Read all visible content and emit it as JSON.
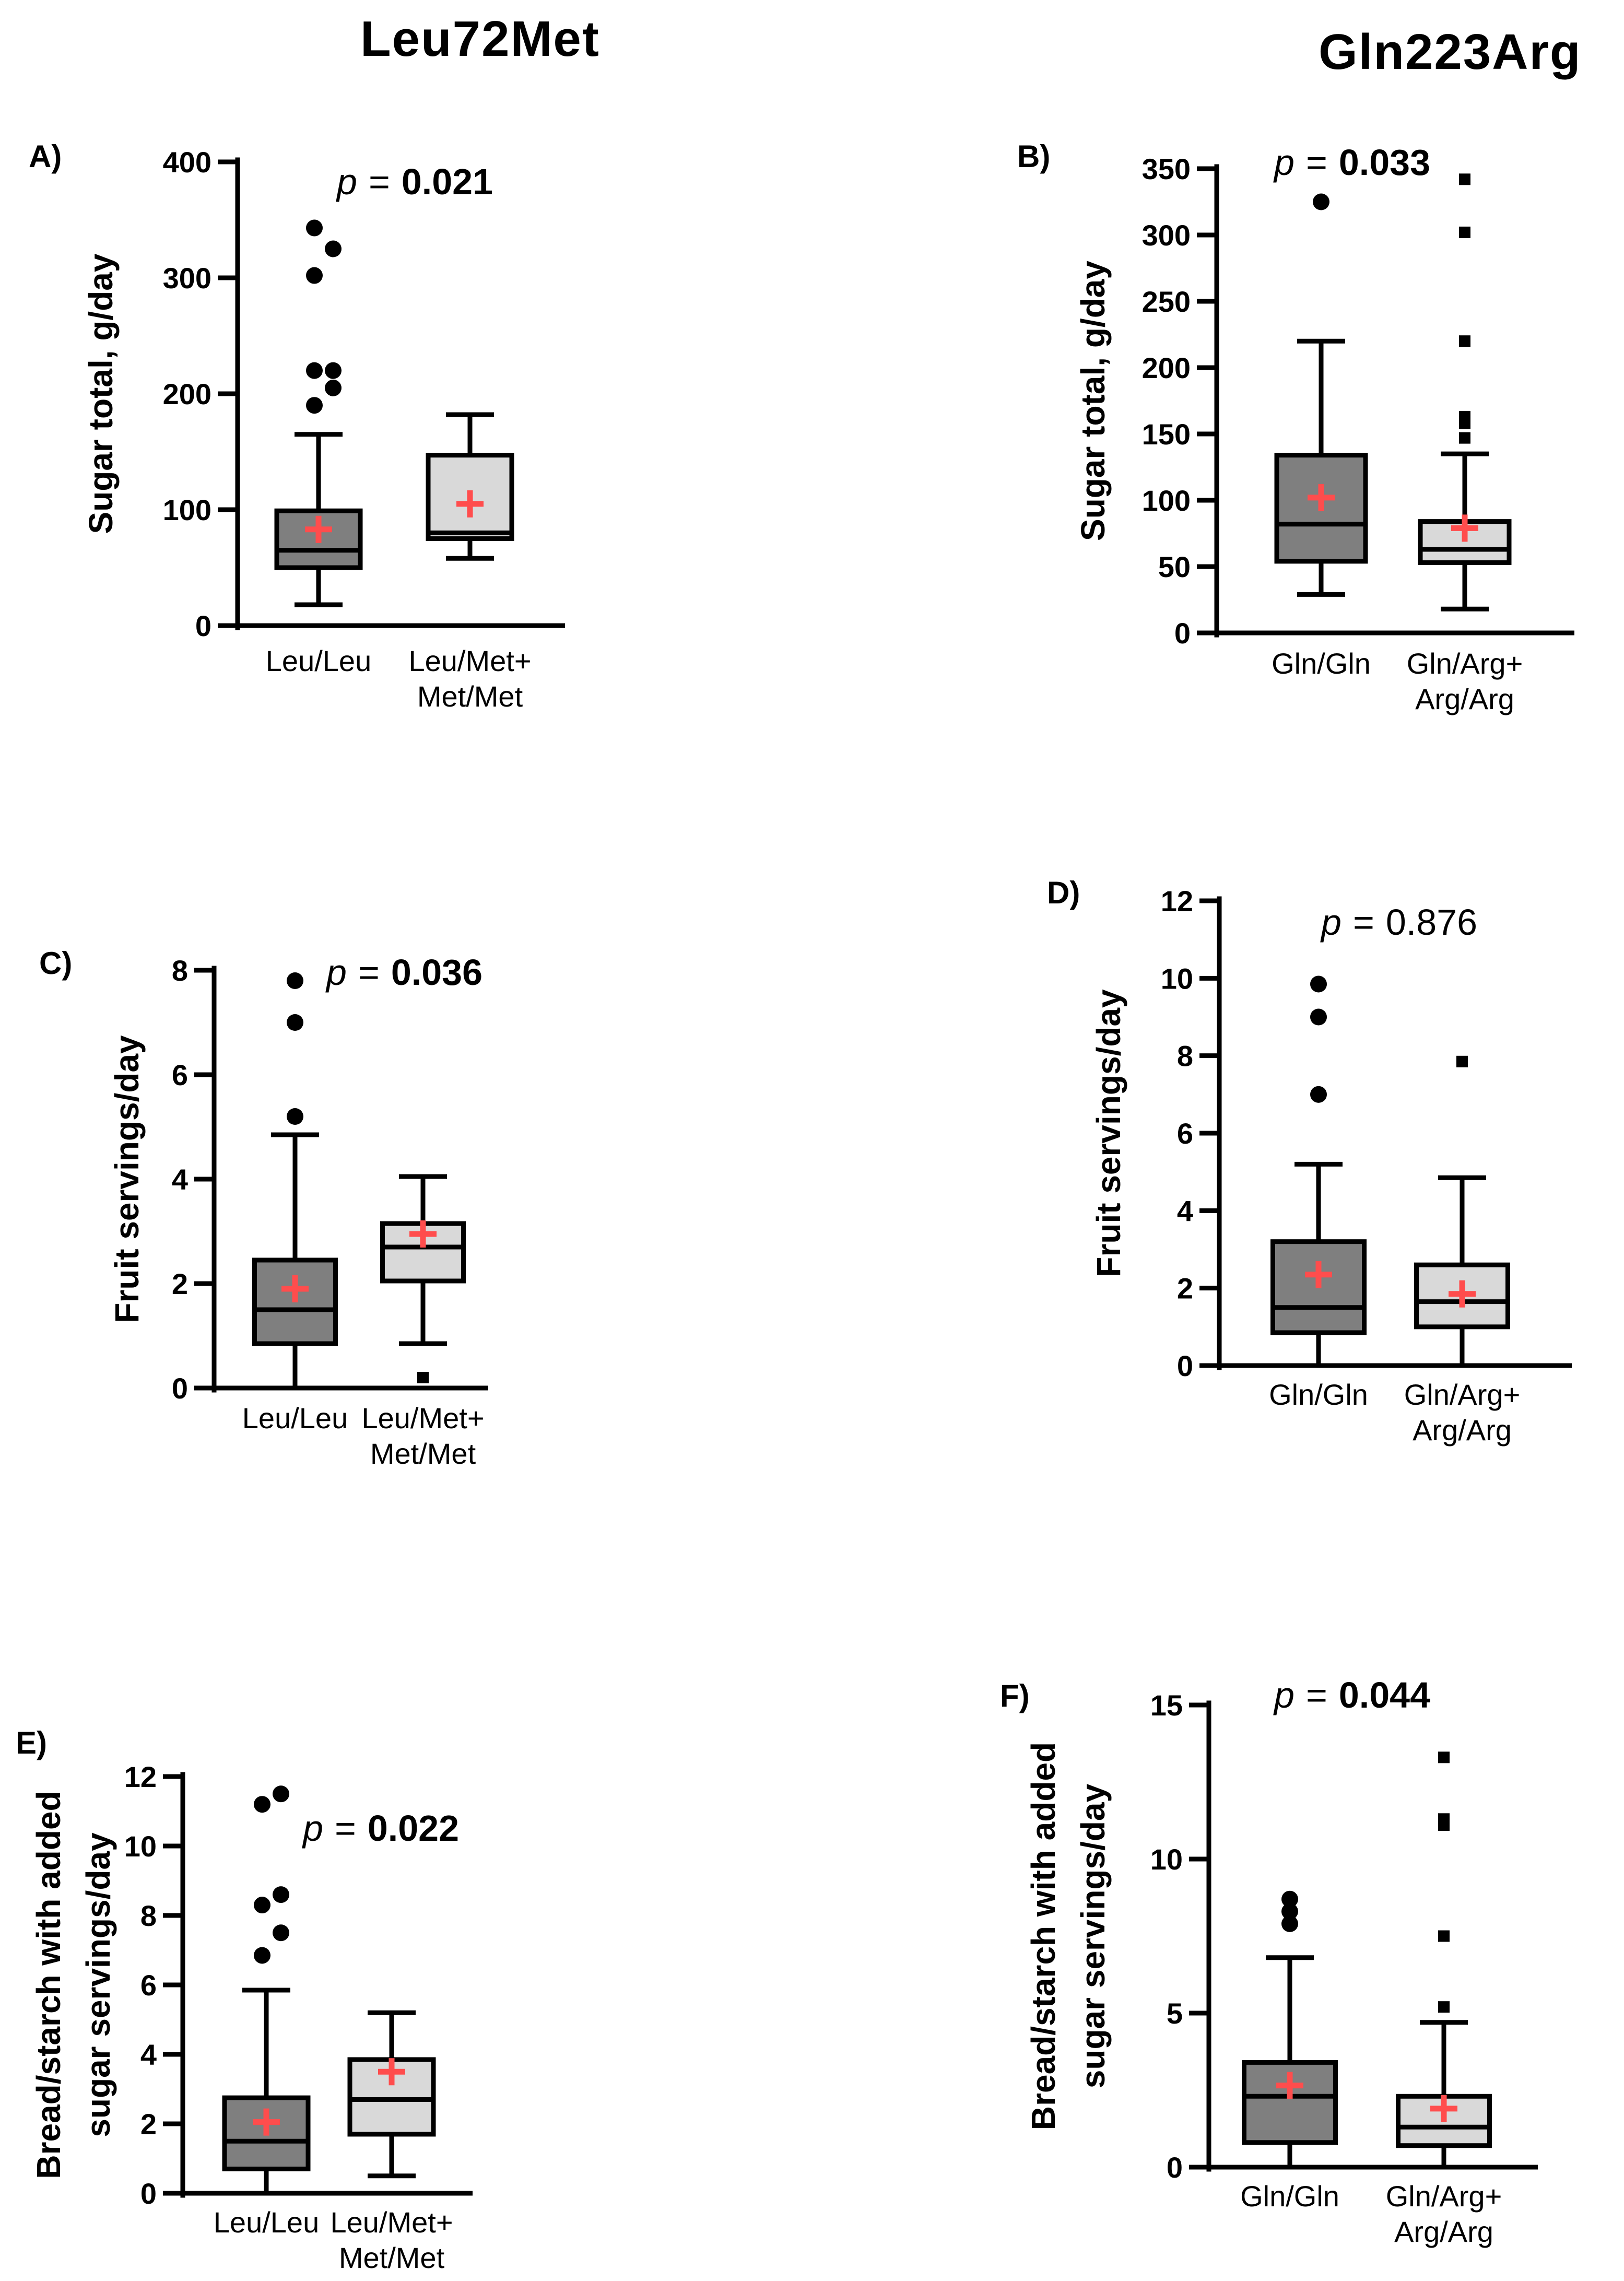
{
  "titles": {
    "left": "Leu72Met",
    "right": "Gln223Arg"
  },
  "chart_data": [
    {
      "id": "A",
      "label": "A)",
      "type": "boxplot",
      "ylabel": "Sugar total, g/day",
      "ylim": [
        0,
        400
      ],
      "yticks": [
        0,
        100,
        200,
        300,
        400
      ],
      "p_prefix": "p",
      "p_eq": "=",
      "p_value": "0.021",
      "p_bold": true,
      "categories": [
        {
          "label": [
            "Leu/Leu"
          ],
          "fill": "#7f7f7f",
          "whisker_low": 18,
          "q1": 50,
          "median": 65,
          "q3": 99,
          "whisker_high": 165,
          "mean": 83,
          "outlier_shape": "circle",
          "outliers": [
            190,
            205,
            220,
            220,
            302,
            325,
            343
          ]
        },
        {
          "label": [
            "Leu/Met+",
            "Met/Met"
          ],
          "fill": "#d9d9d9",
          "whisker_low": 58,
          "q1": 75,
          "median": 80,
          "q3": 147,
          "whisker_high": 182,
          "mean": 105,
          "outlier_shape": "square",
          "outliers": []
        }
      ]
    },
    {
      "id": "B",
      "label": "B)",
      "type": "boxplot",
      "ylabel": "Sugar total, g/day",
      "ylim": [
        0,
        350
      ],
      "yticks": [
        0,
        50,
        100,
        150,
        200,
        250,
        300,
        350
      ],
      "p_prefix": "p",
      "p_eq": "=",
      "p_value": "0.033",
      "p_bold": true,
      "categories": [
        {
          "label": [
            "Gln/Gln"
          ],
          "fill": "#7f7f7f",
          "whisker_low": 29,
          "q1": 54,
          "median": 82,
          "q3": 134,
          "whisker_high": 220,
          "mean": 102,
          "outlier_shape": "circle",
          "outliers": [
            325
          ]
        },
        {
          "label": [
            "Gln/Arg+",
            "Arg/Arg"
          ],
          "fill": "#d9d9d9",
          "whisker_low": 18,
          "q1": 53,
          "median": 63,
          "q3": 84,
          "whisker_high": 135,
          "mean": 79,
          "outlier_shape": "square",
          "outliers": [
            147,
            158,
            163,
            220,
            302,
            342
          ]
        }
      ]
    },
    {
      "id": "C",
      "label": "C)",
      "type": "boxplot",
      "ylabel": "Fruit servings/day",
      "ylim": [
        0,
        8
      ],
      "yticks": [
        0,
        2,
        4,
        6,
        8
      ],
      "p_prefix": "p",
      "p_eq": "=",
      "p_value": "0.036",
      "p_bold": true,
      "categories": [
        {
          "label": [
            "Leu/Leu"
          ],
          "fill": "#7f7f7f",
          "whisker_low": 0,
          "q1": 0.85,
          "median": 1.5,
          "q3": 2.45,
          "whisker_high": 4.85,
          "mean": 1.9,
          "outlier_shape": "circle",
          "outliers": [
            5.2,
            7.0,
            7.8
          ]
        },
        {
          "label": [
            "Leu/Met+",
            "Met/Met"
          ],
          "fill": "#d9d9d9",
          "whisker_low": 0.85,
          "q1": 2.05,
          "median": 2.7,
          "q3": 3.15,
          "whisker_high": 4.05,
          "mean": 2.95,
          "outlier_shape": "square",
          "outliers": [
            0.2
          ]
        }
      ]
    },
    {
      "id": "D",
      "label": "D)",
      "type": "boxplot",
      "ylabel": "Fruit servings/day",
      "ylim": [
        0,
        12
      ],
      "yticks": [
        0,
        2,
        4,
        6,
        8,
        10,
        12
      ],
      "p_prefix": "p",
      "p_eq": "=",
      "p_value": "0.876",
      "p_bold": false,
      "categories": [
        {
          "label": [
            "Gln/Gln"
          ],
          "fill": "#7f7f7f",
          "whisker_low": 0,
          "q1": 0.85,
          "median": 1.5,
          "q3": 3.2,
          "whisker_high": 5.2,
          "mean": 2.35,
          "outlier_shape": "circle",
          "outliers": [
            7.0,
            9.0,
            9.85
          ]
        },
        {
          "label": [
            "Gln/Arg+",
            "Arg/Arg"
          ],
          "fill": "#d9d9d9",
          "whisker_low": 0,
          "q1": 1.0,
          "median": 1.65,
          "q3": 2.6,
          "whisker_high": 4.85,
          "mean": 1.85,
          "outlier_shape": "square",
          "outliers": [
            7.85
          ]
        }
      ]
    },
    {
      "id": "E",
      "label": "E)",
      "type": "boxplot",
      "ylabel": [
        "Bread/starch with added",
        "sugar servings/day"
      ],
      "ylim": [
        0,
        12
      ],
      "yticks": [
        0,
        2,
        4,
        6,
        8,
        10,
        12
      ],
      "p_prefix": "p",
      "p_eq": "=",
      "p_value": "0.022",
      "p_bold": true,
      "categories": [
        {
          "label": [
            "Leu/Leu"
          ],
          "fill": "#7f7f7f",
          "whisker_low": 0,
          "q1": 0.7,
          "median": 1.5,
          "q3": 2.75,
          "whisker_high": 5.85,
          "mean": 2.05,
          "outlier_shape": "circle",
          "outliers": [
            6.85,
            7.5,
            8.3,
            8.6,
            11.2,
            11.5
          ]
        },
        {
          "label": [
            "Leu/Met+",
            "Met/Met"
          ],
          "fill": "#d9d9d9",
          "whisker_low": 0.5,
          "q1": 1.7,
          "median": 2.7,
          "q3": 3.85,
          "whisker_high": 5.2,
          "mean": 3.5,
          "outlier_shape": "square",
          "outliers": []
        }
      ]
    },
    {
      "id": "F",
      "label": "F)",
      "type": "boxplot",
      "ylabel": [
        "Bread/starch with added",
        "sugar servings/day"
      ],
      "ylim": [
        0,
        15
      ],
      "yticks": [
        0,
        5,
        10,
        15
      ],
      "p_prefix": "p",
      "p_eq": "=",
      "p_value": "0.044",
      "p_bold": true,
      "categories": [
        {
          "label": [
            "Gln/Gln"
          ],
          "fill": "#7f7f7f",
          "whisker_low": 0,
          "q1": 0.8,
          "median": 2.3,
          "q3": 3.4,
          "whisker_high": 6.8,
          "mean": 2.65,
          "outlier_shape": "circle",
          "outliers": [
            7.9,
            8.3,
            8.7
          ]
        },
        {
          "label": [
            "Gln/Arg+",
            "Arg/Arg"
          ],
          "fill": "#d9d9d9",
          "whisker_low": 0,
          "q1": 0.7,
          "median": 1.3,
          "q3": 2.3,
          "whisker_high": 4.7,
          "mean": 1.9,
          "outlier_shape": "square",
          "outliers": [
            5.2,
            7.5,
            11.1,
            11.3,
            13.3
          ]
        }
      ]
    }
  ]
}
